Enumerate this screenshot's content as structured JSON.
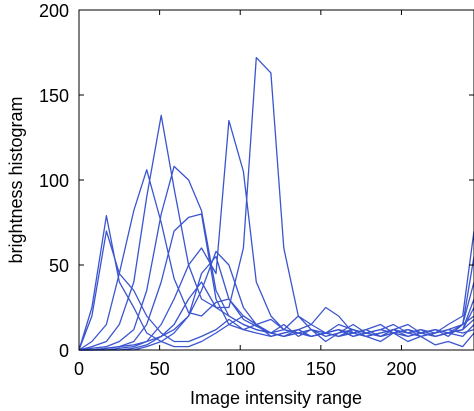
{
  "chart_data": {
    "type": "line",
    "xlabel": "Image intensity range",
    "ylabel": "brightness histogram",
    "xlim": [
      0,
      245
    ],
    "ylim": [
      0,
      200
    ],
    "xticks": [
      0,
      50,
      100,
      150,
      200
    ],
    "yticks": [
      0,
      50,
      100,
      150,
      200
    ],
    "grid": false,
    "colors": {
      "series": "#3b55cf",
      "axis": "#000000",
      "background": "#ffffff"
    },
    "x": [
      0,
      8,
      17,
      25,
      34,
      42,
      51,
      59,
      68,
      76,
      85,
      93,
      102,
      110,
      119,
      127,
      136,
      144,
      153,
      161,
      170,
      178,
      187,
      195,
      204,
      212,
      221,
      229,
      238,
      245
    ],
    "series": [
      {
        "values": [
          0,
          25,
          79,
          40,
          25,
          10,
          5,
          2,
          2,
          5,
          10,
          15,
          20,
          15,
          10,
          15,
          8,
          12,
          5,
          10,
          15,
          10,
          12,
          15,
          10,
          12,
          10,
          15,
          20,
          70
        ]
      },
      {
        "values": [
          0,
          20,
          70,
          45,
          35,
          20,
          10,
          5,
          5,
          8,
          12,
          18,
          12,
          15,
          8,
          10,
          12,
          8,
          10,
          15,
          12,
          8,
          10,
          12,
          15,
          10,
          12,
          8,
          15,
          55
        ]
      },
      {
        "values": [
          0,
          5,
          15,
          45,
          82,
          106,
          75,
          42,
          22,
          20,
          28,
          30,
          18,
          14,
          10,
          12,
          10,
          8,
          10,
          12,
          8,
          10,
          12,
          10,
          8,
          10,
          12,
          10,
          15,
          40
        ]
      },
      {
        "values": [
          0,
          2,
          5,
          15,
          40,
          90,
          138,
          95,
          50,
          30,
          25,
          20,
          15,
          12,
          10,
          8,
          10,
          12,
          8,
          10,
          12,
          8,
          10,
          12,
          10,
          12,
          8,
          10,
          12,
          30
        ]
      },
      {
        "values": [
          0,
          1,
          2,
          5,
          12,
          35,
          80,
          108,
          100,
          82,
          35,
          20,
          15,
          12,
          10,
          8,
          10,
          8,
          10,
          12,
          8,
          10,
          8,
          10,
          12,
          10,
          8,
          10,
          12,
          25
        ]
      },
      {
        "values": [
          0,
          0,
          1,
          2,
          5,
          15,
          40,
          70,
          78,
          80,
          30,
          15,
          12,
          10,
          8,
          10,
          12,
          8,
          10,
          8,
          12,
          10,
          8,
          12,
          10,
          8,
          10,
          12,
          15,
          20
        ]
      },
      {
        "values": [
          0,
          0,
          0,
          1,
          2,
          5,
          15,
          30,
          50,
          60,
          45,
          135,
          105,
          40,
          20,
          12,
          10,
          8,
          10,
          12,
          10,
          8,
          10,
          12,
          8,
          10,
          12,
          10,
          8,
          15
        ]
      },
      {
        "values": [
          0,
          0,
          0,
          0,
          1,
          3,
          8,
          15,
          30,
          40,
          25,
          25,
          60,
          172,
          163,
          60,
          20,
          12,
          10,
          8,
          10,
          12,
          8,
          10,
          12,
          10,
          8,
          10,
          12,
          18
        ]
      },
      {
        "values": [
          0,
          0,
          0,
          0,
          0,
          2,
          5,
          10,
          20,
          35,
          58,
          50,
          25,
          15,
          10,
          8,
          12,
          15,
          10,
          8,
          10,
          12,
          15,
          10,
          12,
          8,
          10,
          12,
          10,
          12
        ]
      },
      {
        "values": [
          0,
          0,
          1,
          2,
          3,
          5,
          8,
          12,
          20,
          45,
          55,
          30,
          20,
          15,
          18,
          12,
          20,
          15,
          25,
          20,
          10,
          8,
          5,
          10,
          5,
          8,
          3,
          5,
          2,
          10
        ]
      }
    ]
  }
}
